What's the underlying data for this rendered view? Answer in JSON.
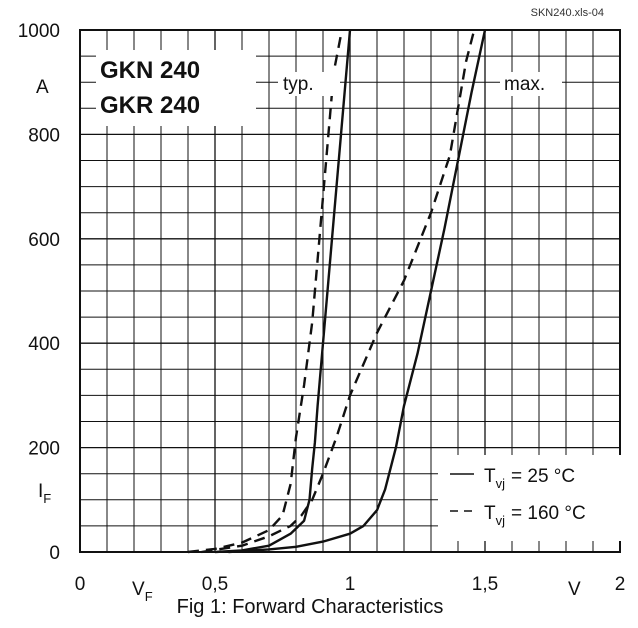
{
  "file_ref": "SKN240.xls-04",
  "caption": "Fig 1: Forward Characteristics",
  "chart_data": {
    "type": "line",
    "title": "",
    "device_labels": [
      "GKN 240",
      "GKR 240"
    ],
    "xlabel": "V",
    "xlabel_sub": "F",
    "x_unit": "V",
    "ylabel": "I",
    "ylabel_sub": "F",
    "y_unit": "A",
    "xlim": [
      0,
      2
    ],
    "ylim": [
      0,
      1000
    ],
    "x_tick_labels": [
      "0",
      "0,5",
      "1",
      "1,5",
      "2"
    ],
    "y_tick_labels": [
      "0",
      "200",
      "400",
      "600",
      "800",
      "1000"
    ],
    "grid": true,
    "region_labels": [
      "typ.",
      "max."
    ],
    "legend": {
      "placement": "bottom-right",
      "entries": [
        {
          "style": "solid",
          "var": "T",
          "sub": "vj",
          "value": "=   25 °C"
        },
        {
          "style": "dashed",
          "var": "T",
          "sub": "vj",
          "value": "= 160 °C"
        }
      ]
    },
    "series": [
      {
        "name": "T_vj = 25 °C",
        "group": "typ.",
        "style": "solid",
        "points": [
          [
            0.5,
            0
          ],
          [
            0.6,
            3
          ],
          [
            0.7,
            12
          ],
          [
            0.78,
            35
          ],
          [
            0.83,
            60
          ],
          [
            0.85,
            100
          ],
          [
            0.86,
            160
          ],
          [
            0.87,
            210
          ],
          [
            0.88,
            280
          ],
          [
            0.9,
            400
          ],
          [
            0.92,
            520
          ],
          [
            0.94,
            640
          ],
          [
            0.96,
            760
          ],
          [
            0.98,
            880
          ],
          [
            1.0,
            1000
          ]
        ]
      },
      {
        "name": "T_vj = 160 °C",
        "group": "typ.",
        "style": "dashed",
        "points": [
          [
            0.4,
            0
          ],
          [
            0.5,
            6
          ],
          [
            0.6,
            18
          ],
          [
            0.7,
            42
          ],
          [
            0.75,
            70
          ],
          [
            0.78,
            130
          ],
          [
            0.8,
            220
          ],
          [
            0.83,
            320
          ],
          [
            0.86,
            440
          ],
          [
            0.88,
            560
          ],
          [
            0.9,
            680
          ],
          [
            0.92,
            800
          ],
          [
            0.94,
            920
          ],
          [
            0.97,
            1000
          ]
        ]
      },
      {
        "name": "T_vj = 25 °C",
        "group": "max.",
        "style": "solid",
        "points": [
          [
            0.55,
            0
          ],
          [
            0.7,
            5
          ],
          [
            0.8,
            10
          ],
          [
            0.9,
            20
          ],
          [
            1.0,
            35
          ],
          [
            1.05,
            50
          ],
          [
            1.1,
            80
          ],
          [
            1.13,
            120
          ],
          [
            1.17,
            200
          ],
          [
            1.2,
            280
          ],
          [
            1.25,
            380
          ],
          [
            1.3,
            500
          ],
          [
            1.35,
            620
          ],
          [
            1.4,
            750
          ],
          [
            1.45,
            880
          ],
          [
            1.5,
            1000
          ]
        ]
      },
      {
        "name": "T_vj = 160 °C",
        "group": "max.",
        "style": "dashed",
        "points": [
          [
            0.45,
            0
          ],
          [
            0.6,
            12
          ],
          [
            0.7,
            30
          ],
          [
            0.78,
            50
          ],
          [
            0.82,
            70
          ],
          [
            0.86,
            100
          ],
          [
            0.9,
            150
          ],
          [
            0.95,
            220
          ],
          [
            1.0,
            300
          ],
          [
            1.05,
            360
          ],
          [
            1.1,
            420
          ],
          [
            1.2,
            520
          ],
          [
            1.3,
            650
          ],
          [
            1.37,
            760
          ],
          [
            1.4,
            850
          ],
          [
            1.43,
            940
          ],
          [
            1.46,
            1000
          ]
        ]
      }
    ]
  }
}
